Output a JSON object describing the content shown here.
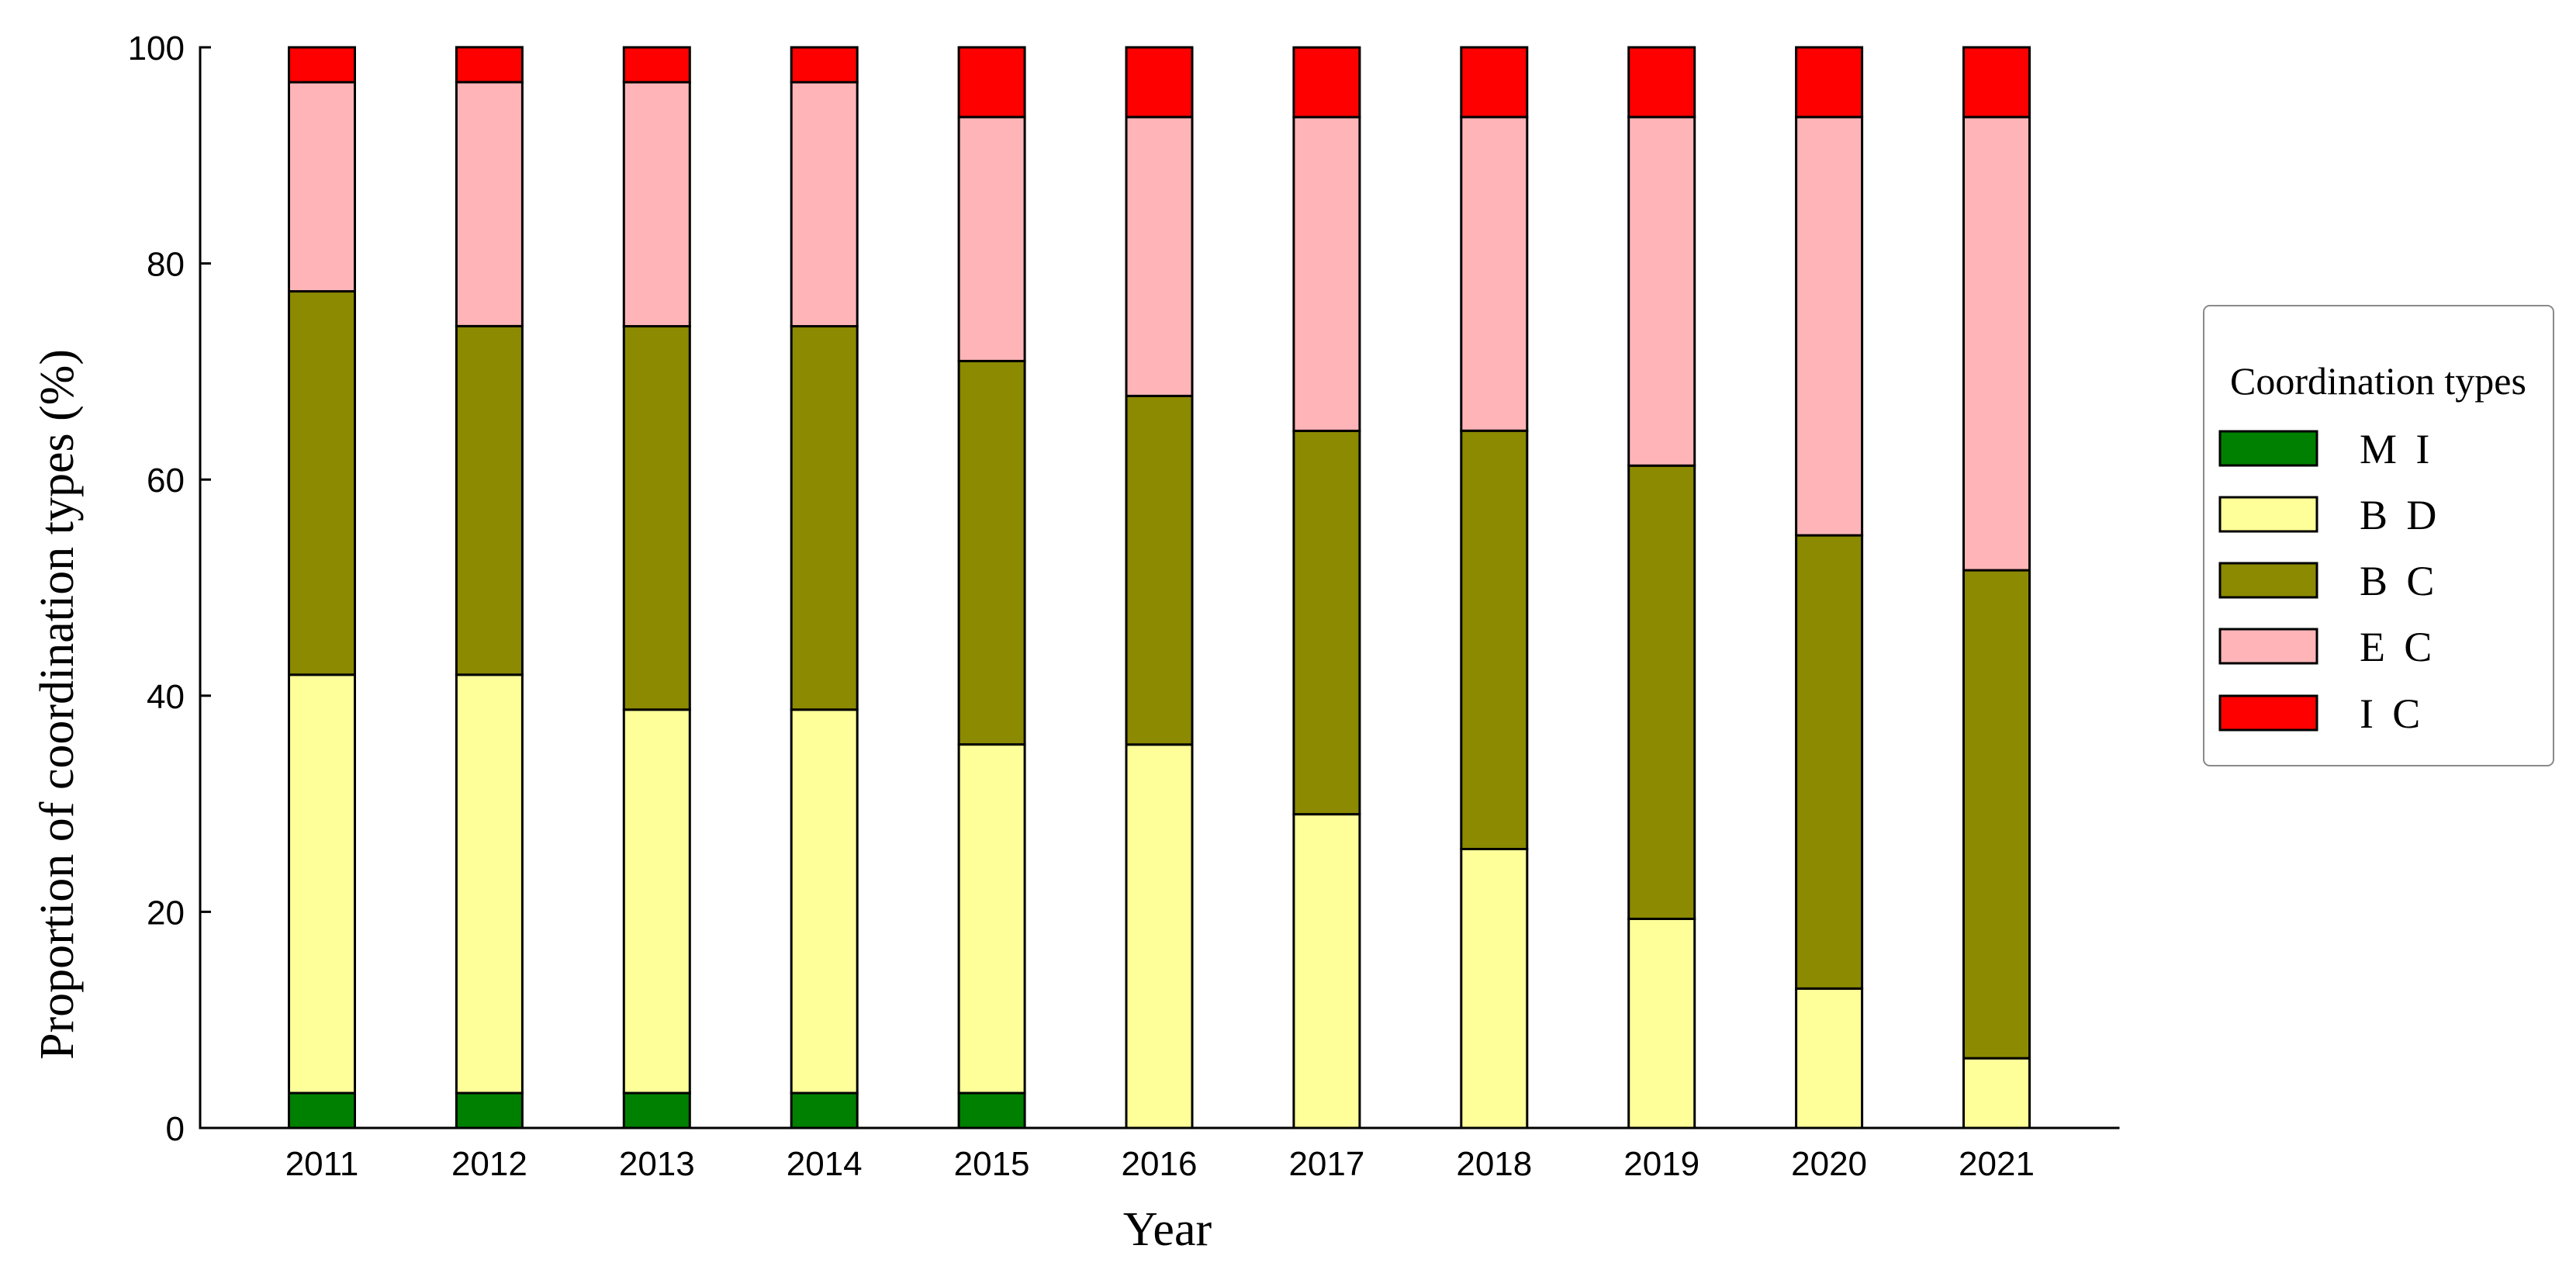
{
  "chart_data": {
    "type": "bar",
    "stacked": true,
    "categories": [
      "2011",
      "2012",
      "2013",
      "2014",
      "2015",
      "2016",
      "2017",
      "2018",
      "2019",
      "2020",
      "2021"
    ],
    "series": [
      {
        "name": "MI",
        "color": "#008000",
        "values": [
          3.23,
          3.23,
          3.23,
          3.23,
          3.23,
          0,
          0,
          0,
          0,
          0,
          0
        ]
      },
      {
        "name": "BD",
        "color": "#FFFF99",
        "values": [
          38.71,
          38.71,
          35.48,
          35.48,
          32.26,
          35.48,
          29.03,
          25.81,
          19.35,
          12.9,
          6.45
        ]
      },
      {
        "name": "BC",
        "color": "#8B8A00",
        "values": [
          35.48,
          32.26,
          35.48,
          35.48,
          35.48,
          32.26,
          35.48,
          38.71,
          41.94,
          41.94,
          45.16
        ]
      },
      {
        "name": "EC",
        "color": "#FFB5B8",
        "values": [
          19.35,
          22.58,
          22.58,
          22.58,
          22.58,
          25.81,
          29.03,
          29.03,
          32.26,
          38.71,
          41.94
        ]
      },
      {
        "name": "IC",
        "color": "#FF0000",
        "values": [
          3.23,
          3.23,
          3.23,
          3.23,
          6.45,
          6.45,
          6.45,
          6.45,
          6.45,
          6.45,
          6.45
        ]
      }
    ],
    "xlabel": "Year",
    "ylabel": "Proportion of coordination types (%)",
    "ylim": [
      0,
      100
    ],
    "yticks": [
      0,
      20,
      40,
      60,
      80,
      100
    ],
    "grid": false,
    "legend": {
      "title": "Coordination types",
      "placement": "right"
    }
  }
}
